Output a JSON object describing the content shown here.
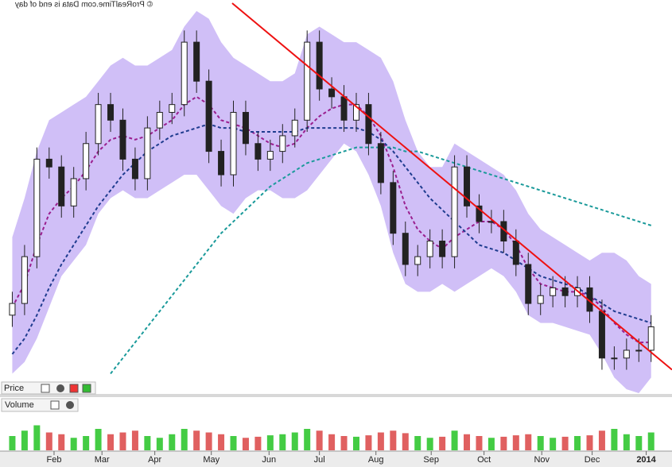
{
  "credit": "© ProRealTime.com  Data is end of day",
  "chart_data": [
    {
      "type": "candlestick",
      "title": "Price",
      "x": [
        1,
        2,
        3,
        4,
        5,
        6,
        7,
        8,
        9,
        10,
        11,
        12,
        13,
        14,
        15,
        16,
        17,
        18,
        19,
        20,
        21,
        22,
        23,
        24,
        25,
        26,
        27,
        28,
        29,
        30,
        31,
        32,
        33,
        34,
        35,
        36,
        37,
        38,
        39,
        40,
        41,
        42,
        43,
        44,
        45,
        46,
        47,
        48,
        49,
        50,
        51,
        52,
        53
      ],
      "xlim": [
        0,
        54.7
      ],
      "xticks": [
        {
          "value": 4.4,
          "label": "Feb"
        },
        {
          "value": 8.3,
          "label": "Mar"
        },
        {
          "value": 12.6,
          "label": "Apr"
        },
        {
          "value": 17.2,
          "label": "May"
        },
        {
          "value": 21.9,
          "label": "Jun"
        },
        {
          "value": 26.0,
          "label": "Jul"
        },
        {
          "value": 30.6,
          "label": "Aug"
        },
        {
          "value": 35.1,
          "label": "Sep"
        },
        {
          "value": 39.4,
          "label": "Oct"
        },
        {
          "value": 44.1,
          "label": "Nov"
        },
        {
          "value": 48.2,
          "label": "Dec"
        },
        {
          "value": 52.6,
          "label": "2014"
        }
      ],
      "ylim": [
        0,
        100
      ],
      "open": [
        20,
        23,
        35,
        60,
        58,
        48,
        55,
        64,
        74,
        70,
        60,
        55,
        68,
        72,
        74,
        90,
        80,
        62,
        56,
        72,
        64,
        60,
        62,
        66,
        70,
        90,
        78,
        76,
        70,
        74,
        64,
        54,
        41,
        33,
        35,
        39,
        35,
        58,
        48,
        44,
        44,
        39,
        33,
        23,
        25,
        27,
        25,
        27,
        21,
        9,
        9,
        11,
        11
      ],
      "high": [
        26,
        38,
        63,
        63,
        61,
        58,
        67,
        77,
        77,
        73,
        63,
        71,
        75,
        77,
        93,
        93,
        83,
        65,
        75,
        75,
        67,
        65,
        69,
        73,
        93,
        93,
        81,
        79,
        77,
        77,
        67,
        57,
        44,
        38,
        42,
        42,
        61,
        61,
        51,
        47,
        47,
        42,
        36,
        28,
        30,
        30,
        30,
        30,
        24,
        12,
        14,
        14,
        20
      ],
      "low": [
        17,
        20,
        32,
        55,
        45,
        45,
        52,
        61,
        67,
        57,
        52,
        52,
        65,
        69,
        71,
        77,
        59,
        53,
        53,
        61,
        57,
        57,
        59,
        63,
        67,
        75,
        73,
        67,
        67,
        61,
        51,
        38,
        30,
        30,
        32,
        32,
        32,
        45,
        41,
        41,
        36,
        30,
        20,
        20,
        22,
        22,
        22,
        18,
        6,
        6,
        6,
        8,
        8
      ],
      "close": [
        23,
        35,
        60,
        58,
        48,
        55,
        64,
        74,
        70,
        60,
        55,
        68,
        72,
        74,
        90,
        80,
        62,
        56,
        72,
        64,
        60,
        62,
        66,
        70,
        90,
        78,
        76,
        70,
        74,
        64,
        54,
        41,
        33,
        35,
        39,
        35,
        58,
        48,
        44,
        44,
        39,
        33,
        23,
        25,
        27,
        25,
        27,
        21,
        9,
        9,
        11,
        11,
        17
      ],
      "up_color": "#ffffff",
      "down_color": "#222222",
      "band": {
        "color": "#a98bf0",
        "upper": [
          40,
          50,
          62,
          70,
          72,
          74,
          76,
          80,
          84,
          86,
          84,
          84,
          86,
          88,
          94,
          98,
          96,
          90,
          86,
          84,
          82,
          80,
          80,
          82,
          92,
          94,
          92,
          90,
          90,
          88,
          86,
          80,
          70,
          62,
          58,
          58,
          64,
          62,
          60,
          58,
          56,
          52,
          46,
          42,
          40,
          38,
          36,
          34,
          36,
          36,
          34,
          30,
          28
        ],
        "lower": [
          5,
          8,
          14,
          22,
          30,
          34,
          38,
          46,
          50,
          52,
          50,
          50,
          52,
          54,
          56,
          56,
          52,
          48,
          46,
          50,
          52,
          52,
          50,
          50,
          52,
          56,
          60,
          64,
          62,
          56,
          48,
          36,
          28,
          26,
          26,
          28,
          26,
          28,
          30,
          32,
          30,
          26,
          20,
          18,
          18,
          17,
          16,
          15,
          10,
          4,
          1,
          0,
          4
        ]
      },
      "lines": [
        {
          "color": "#9a1f8f",
          "values": [
            22,
            28,
            38,
            46,
            50,
            53,
            57,
            62,
            65,
            66,
            65,
            66,
            68,
            70,
            74,
            76,
            74,
            70,
            69,
            68,
            66,
            64,
            63,
            64,
            68,
            71,
            73,
            74,
            74,
            71,
            66,
            58,
            48,
            42,
            39,
            37,
            40,
            42,
            44,
            44,
            42,
            38,
            32,
            28,
            27,
            26,
            26,
            25,
            22,
            18,
            15,
            13,
            13
          ]
        },
        {
          "color": "#1f3c8f",
          "values": [
            10,
            14,
            20,
            27,
            33,
            38,
            43,
            48,
            52,
            56,
            59,
            62,
            64,
            66,
            67,
            68,
            69,
            68,
            68,
            67,
            67,
            67,
            67,
            67,
            68,
            68,
            68,
            68,
            68,
            67,
            65,
            62,
            58,
            54,
            50,
            47,
            44,
            41,
            38,
            37,
            36,
            34,
            32,
            30,
            29,
            28,
            27,
            25,
            23,
            21,
            20,
            19,
            18
          ]
        },
        {
          "color": "#1a9a9a",
          "values": [
            null,
            null,
            null,
            null,
            null,
            null,
            null,
            null,
            5,
            9,
            13,
            17,
            21,
            25,
            29,
            33,
            37,
            41,
            44,
            47,
            50,
            53,
            55,
            57,
            59,
            60,
            61,
            62,
            63,
            63,
            63,
            63,
            62,
            62,
            61,
            60,
            59,
            58,
            57,
            56,
            55,
            54,
            53,
            52,
            51,
            50,
            49,
            48,
            47,
            46,
            45,
            44,
            43
          ]
        }
      ],
      "trend_line": {
        "color": "#ee1111",
        "x": [
          18.9,
          54.7
        ],
        "values": [
          100,
          6
        ]
      }
    },
    {
      "type": "bar",
      "title": "Volume",
      "ylim": [
        0,
        100
      ],
      "up_color": "#44cc44",
      "down_color": "#e06060",
      "values": [
        40,
        55,
        70,
        50,
        45,
        35,
        40,
        60,
        45,
        50,
        55,
        40,
        35,
        45,
        60,
        55,
        50,
        45,
        40,
        35,
        38,
        42,
        45,
        50,
        60,
        55,
        45,
        40,
        38,
        42,
        50,
        55,
        48,
        40,
        35,
        38,
        55,
        45,
        40,
        35,
        38,
        42,
        45,
        40,
        35,
        38,
        40,
        42,
        55,
        60,
        45,
        40,
        50
      ]
    }
  ]
}
